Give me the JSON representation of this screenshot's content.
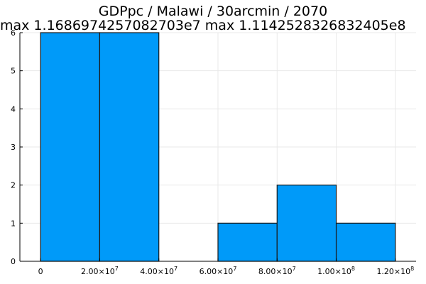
{
  "chart_data": {
    "type": "bar",
    "title": "GDPpc / Malawi / 30arcmin / 2070",
    "subtitle": "max 1.1686974257082703e7  max 1.1142528326832405e8",
    "xlabel": "",
    "ylabel": "",
    "bins": [
      {
        "x0": 0,
        "x1": 20000000,
        "count": 6
      },
      {
        "x0": 20000000,
        "x1": 40000000,
        "count": 6
      },
      {
        "x0": 40000000,
        "x1": 60000000,
        "count": 0
      },
      {
        "x0": 60000000,
        "x1": 80000000,
        "count": 1
      },
      {
        "x0": 80000000,
        "x1": 100000000,
        "count": 2
      },
      {
        "x0": 100000000,
        "x1": 120000000,
        "count": 1
      }
    ],
    "xlim": [
      -7000000,
      127000000
    ],
    "ylim": [
      0,
      6
    ],
    "x_ticks": [
      {
        "value": 0,
        "mantissa": "0",
        "exponent": ""
      },
      {
        "value": 20000000,
        "mantissa": "2.00×10",
        "exponent": "7"
      },
      {
        "value": 40000000,
        "mantissa": "4.00×10",
        "exponent": "7"
      },
      {
        "value": 60000000,
        "mantissa": "6.00×10",
        "exponent": "7"
      },
      {
        "value": 80000000,
        "mantissa": "8.00×10",
        "exponent": "7"
      },
      {
        "value": 100000000,
        "mantissa": "1.00×10",
        "exponent": "8"
      },
      {
        "value": 120000000,
        "mantissa": "1.20×10",
        "exponent": "8"
      }
    ],
    "y_ticks": [
      0,
      1,
      2,
      3,
      4,
      5,
      6
    ],
    "grid": true,
    "legend": "none",
    "colors": {
      "bar": "#009af9",
      "bar_edge": "#1a1a1a",
      "grid": "#e8e8e8",
      "axis": "#000000"
    }
  }
}
